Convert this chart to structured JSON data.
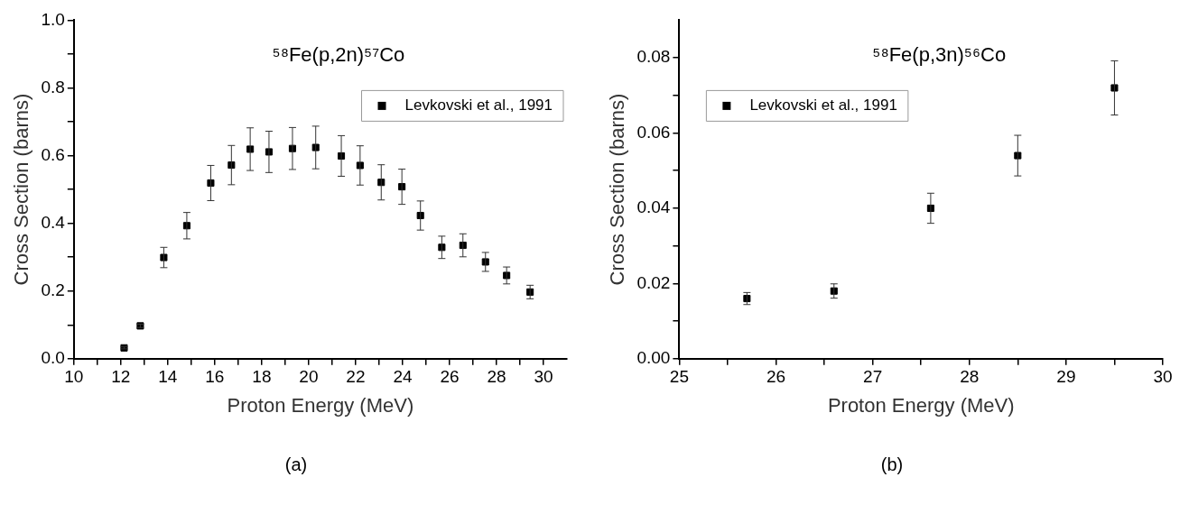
{
  "chart_data": [
    {
      "type": "scatter",
      "title": "⁵⁸Fe(p,2n)⁵⁷Co",
      "xlabel": "Proton Energy (MeV)",
      "ylabel": "Cross Section (barns)",
      "annotations": [
        "(a)"
      ],
      "xlim": [
        10,
        31
      ],
      "xticks": [
        10,
        {
          "value": 11,
          "label": null
        },
        12,
        {
          "value": 13,
          "label": null
        },
        14,
        {
          "value": 15,
          "label": null
        },
        16,
        {
          "value": 17,
          "label": null
        },
        18,
        {
          "value": 19,
          "label": null
        },
        20,
        {
          "value": 21,
          "label": null
        },
        22,
        {
          "value": 23,
          "label": null
        },
        24,
        {
          "value": 25,
          "label": null
        },
        26,
        {
          "value": 27,
          "label": null
        },
        28,
        {
          "value": 29,
          "label": null
        },
        30
      ],
      "ylim": [
        0,
        1
      ],
      "yticks": [
        {
          "value": 0,
          "label": "0.0"
        },
        {
          "value": 0.1,
          "label": null
        },
        0.2,
        {
          "value": 0.3,
          "label": null
        },
        0.4,
        {
          "value": 0.5,
          "label": null
        },
        0.6,
        {
          "value": 0.7,
          "label": null
        },
        0.8,
        {
          "value": 0.9,
          "label": null
        },
        {
          "value": 1,
          "label": "1.0"
        }
      ],
      "grid": false,
      "legend": "top right",
      "marker": "square",
      "series": [
        {
          "name": "Levkovski et al., 1991",
          "color": "#000000",
          "x": [
            12.14,
            12.83,
            13.83,
            14.81,
            15.83,
            16.71,
            17.51,
            18.31,
            19.31,
            20.3,
            21.39,
            22.19,
            23.09,
            23.97,
            24.76,
            25.67,
            26.57,
            27.53,
            28.43,
            29.43
          ],
          "values": [
            0.032,
            0.097,
            0.299,
            0.393,
            0.519,
            0.572,
            0.619,
            0.611,
            0.621,
            0.624,
            0.599,
            0.571,
            0.521,
            0.508,
            0.423,
            0.329,
            0.335,
            0.286,
            0.246,
            0.197
          ],
          "errors": [
            0.003,
            0.005,
            0.03,
            0.039,
            0.052,
            0.058,
            0.063,
            0.061,
            0.062,
            0.063,
            0.06,
            0.058,
            0.052,
            0.052,
            0.043,
            0.033,
            0.034,
            0.028,
            0.025,
            0.02
          ]
        }
      ]
    },
    {
      "type": "scatter",
      "title": "⁵⁸Fe(p,3n)⁵⁶Co",
      "xlabel": "Proton Energy (MeV)",
      "ylabel": "Cross Section (barns)",
      "annotations": [
        "(b)"
      ],
      "xlim": [
        25,
        30
      ],
      "xticks": [
        25,
        {
          "value": 25.5,
          "label": null
        },
        26,
        {
          "value": 26.5,
          "label": null
        },
        27,
        {
          "value": 27.5,
          "label": null
        },
        28,
        {
          "value": 28.5,
          "label": null
        },
        29,
        {
          "value": 29.5,
          "label": null
        },
        30
      ],
      "ylim": [
        0,
        0.09
      ],
      "yticks": [
        {
          "value": 0,
          "label": "0.00"
        },
        {
          "value": 0.01,
          "label": null
        },
        {
          "value": 0.02,
          "label": "0.02"
        },
        {
          "value": 0.03,
          "label": null
        },
        {
          "value": 0.04,
          "label": "0.04"
        },
        {
          "value": 0.05,
          "label": null
        },
        {
          "value": 0.06,
          "label": "0.06"
        },
        {
          "value": 0.07,
          "label": null
        },
        {
          "value": 0.08,
          "label": "0.08"
        }
      ],
      "grid": false,
      "legend": "top left",
      "marker": "square",
      "series": [
        {
          "name": "Levkovski et al., 1991",
          "color": "#000000",
          "x": [
            25.7,
            26.6,
            27.6,
            28.5,
            29.5
          ],
          "values": [
            0.016,
            0.018,
            0.04,
            0.054,
            0.072
          ],
          "errors": [
            0.0016,
            0.0019,
            0.004,
            0.0054,
            0.0072
          ]
        }
      ]
    }
  ]
}
